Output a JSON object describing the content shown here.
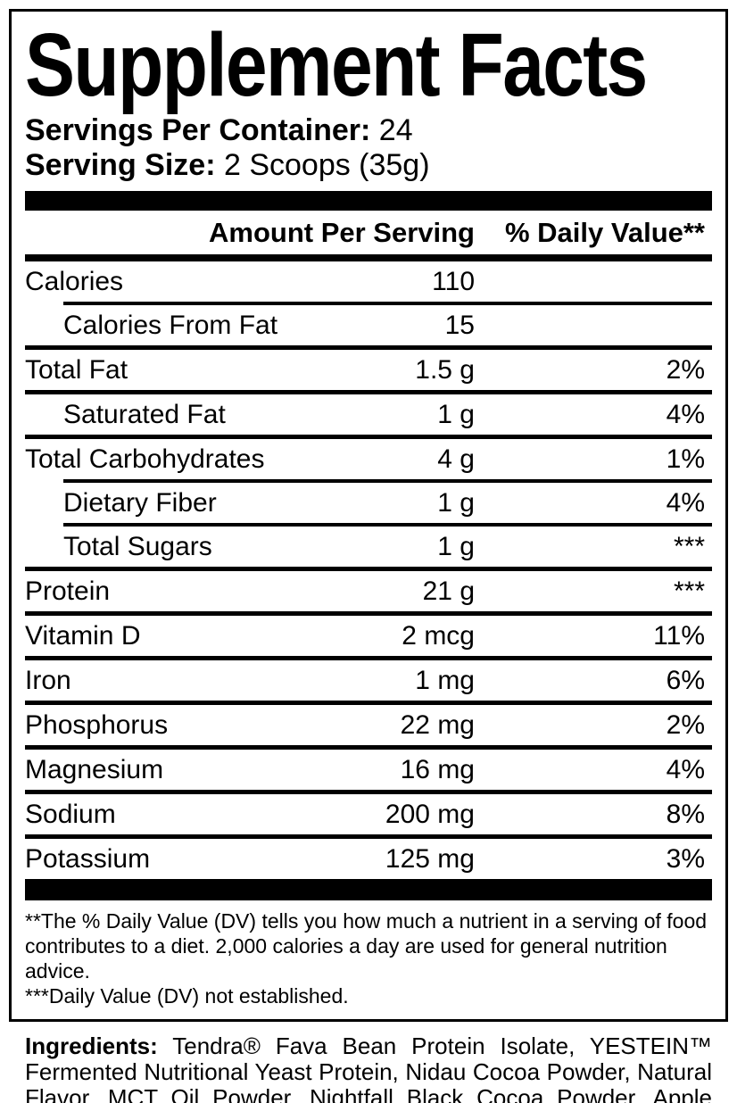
{
  "colors": {
    "text": "#000000",
    "background": "#ffffff",
    "rule": "#000000"
  },
  "label": {
    "title": "Supplement Facts",
    "servings_per_container_label": "Servings Per Container:",
    "servings_per_container_value": " 24",
    "serving_size_label": "Serving Size:",
    "serving_size_value": " 2 Scoops (35g)",
    "columns": {
      "amount_header": "Amount Per Serving",
      "daily_value_header": "% Daily Value**"
    },
    "rows": [
      {
        "id": "calories",
        "name": "Calories",
        "amount": "110",
        "dv": "",
        "indent": false,
        "sep_before": "none"
      },
      {
        "id": "calories-from-fat",
        "name": "Calories From Fat",
        "amount": "15",
        "dv": "",
        "indent": true,
        "sep_before": "indent"
      },
      {
        "id": "total-fat",
        "name": "Total Fat",
        "amount": "1.5 g",
        "dv": "2%",
        "indent": false,
        "sep_before": "full"
      },
      {
        "id": "saturated-fat",
        "name": "Saturated Fat",
        "amount": "1 g",
        "dv": "4%",
        "indent": true,
        "sep_before": "full"
      },
      {
        "id": "total-carbohydrates",
        "name": "Total Carbohydrates",
        "amount": "4 g",
        "dv": "1%",
        "indent": false,
        "sep_before": "full"
      },
      {
        "id": "dietary-fiber",
        "name": "Dietary Fiber",
        "amount": "1 g",
        "dv": "4%",
        "indent": true,
        "sep_before": "indent"
      },
      {
        "id": "total-sugars",
        "name": "Total Sugars",
        "amount": "1 g",
        "dv": "***",
        "indent": true,
        "sep_before": "indent"
      },
      {
        "id": "protein",
        "name": "Protein",
        "amount": "21 g",
        "dv": "***",
        "indent": false,
        "sep_before": "full"
      },
      {
        "id": "vitamin-d",
        "name": "Vitamin D",
        "amount": "2 mcg",
        "dv": "11%",
        "indent": false,
        "sep_before": "full"
      },
      {
        "id": "iron",
        "name": "Iron",
        "amount": "1 mg",
        "dv": "6%",
        "indent": false,
        "sep_before": "full"
      },
      {
        "id": "phosphorus",
        "name": "Phosphorus",
        "amount": "22 mg",
        "dv": "2%",
        "indent": false,
        "sep_before": "full"
      },
      {
        "id": "magnesium",
        "name": "Magnesium",
        "amount": "16 mg",
        "dv": "4%",
        "indent": false,
        "sep_before": "full"
      },
      {
        "id": "sodium",
        "name": "Sodium",
        "amount": "200 mg",
        "dv": "8%",
        "indent": false,
        "sep_before": "full"
      },
      {
        "id": "potassium",
        "name": "Potassium",
        "amount": "125 mg",
        "dv": "3%",
        "indent": false,
        "sep_before": "full"
      }
    ],
    "footnotes": {
      "daily_value_note": "**The % Daily Value (DV) tells you how much a nutrient in a serving of food contributes to a diet. 2,000 calories a day are used for general nutrition advice.",
      "not_established_note": "***Daily Value (DV) not established."
    }
  },
  "ingredients": {
    "label": "Ingredients:",
    "text": " Tendra® Fava Bean Protein Isolate, YESTEIN™ Fermented Nutritional Yeast Protein, Nidau Cocoa Powder, Natural Flavor, MCT Oil Powder, Nightfall Black Cocoa Powder, Apple Pectin Powder, Sea Salt, Sunflower Lecithin, Stevia Extract (leaf)."
  }
}
